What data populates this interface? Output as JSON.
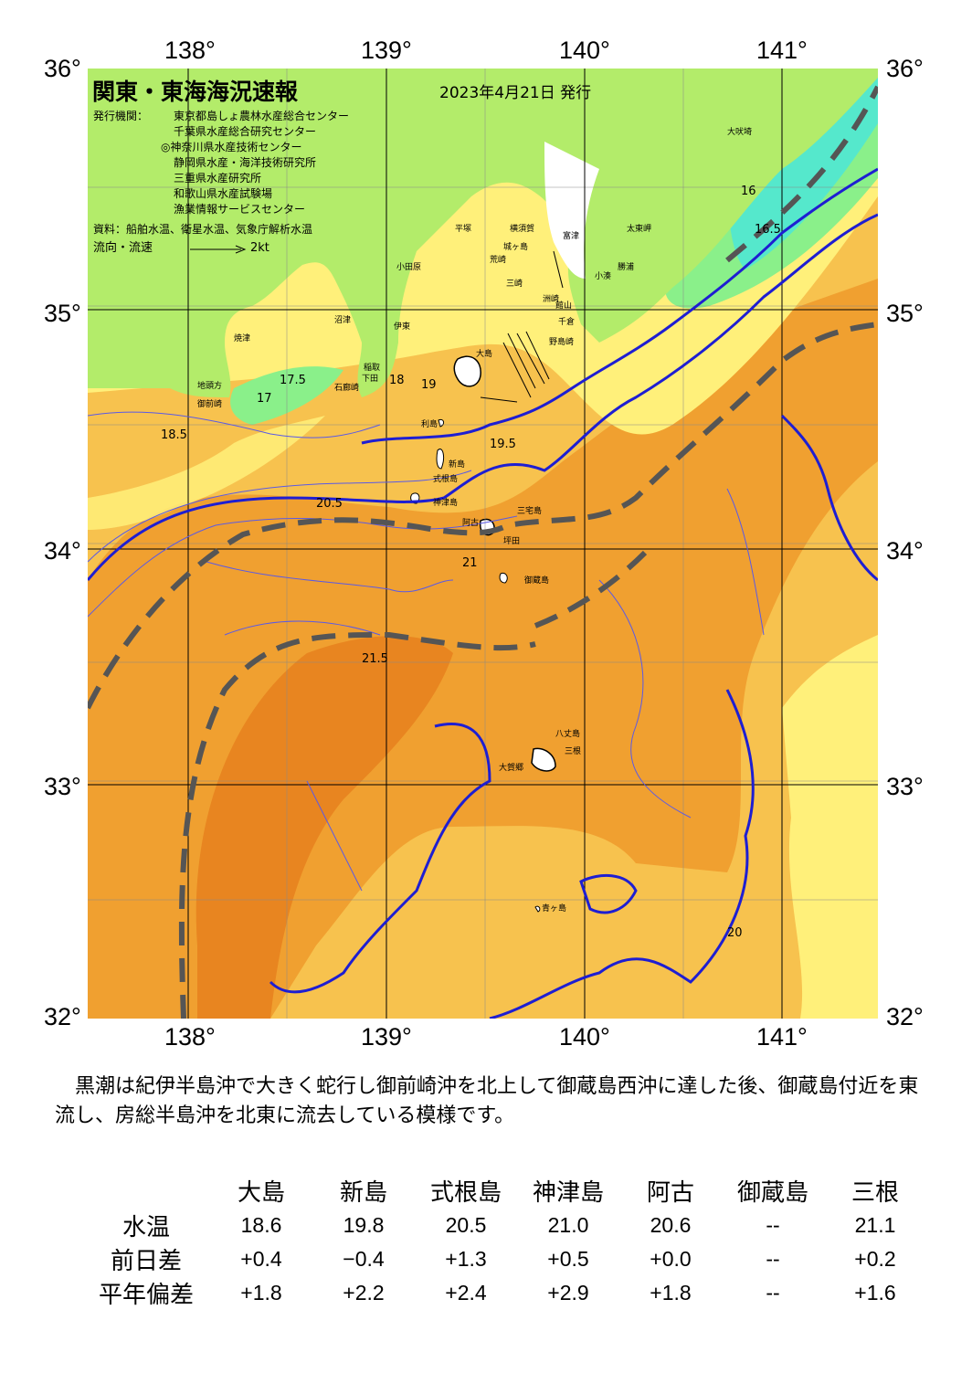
{
  "header": {
    "title": "関東・東海海況速報",
    "date": "2023年4月21日 発行"
  },
  "issuers": {
    "label": "発行機関：",
    "orgs": [
      "東京都島しょ農林水産総合センター",
      "千葉県水産総合研究センター",
      "◎神奈川県水産技術センター",
      "静岡県水産・海洋技術研究所",
      "三重県水産研究所",
      "和歌山県水産試験場",
      "漁業情報サービスセンター"
    ],
    "sources": "資料：船舶水温、衛星水温、気象庁解析水温",
    "flow_label": "流向・流速",
    "flow_scale": "2kt"
  },
  "axes": {
    "lon_labels": [
      "138°",
      "139°",
      "140°",
      "141°"
    ],
    "lat_labels": [
      "36°",
      "35°",
      "34°",
      "33°",
      "32°"
    ],
    "lon_range": [
      137.5,
      141.5
    ],
    "lat_range": [
      32,
      36
    ]
  },
  "places": [
    "大吠埼",
    "太東岬",
    "勝浦",
    "小湊",
    "富津",
    "横須賀",
    "城ヶ島",
    "荒崎",
    "三崎",
    "館山",
    "千倉",
    "野島崎",
    "洲崎",
    "平塚",
    "小田原",
    "伊東",
    "稲取",
    "下田",
    "石廊崎",
    "沼津",
    "焼津",
    "御前崎",
    "地頭方",
    "大島",
    "利島",
    "新島",
    "式根島",
    "神津島",
    "三宅島",
    "阿古",
    "坪田",
    "御蔵島",
    "八丈島",
    "三根",
    "大賀郷",
    "青ヶ島"
  ],
  "isotherm_labels": [
    "16",
    "16.5",
    "17",
    "17.5",
    "18",
    "18.5",
    "19",
    "19.5",
    "20",
    "20.5",
    "21",
    "21.5"
  ],
  "colors": {
    "land": "#b3ec6a",
    "sea_cold": "#55e8cc",
    "sea_cool": "#8af08a",
    "sea_mid": "#fff07a",
    "sea_warm": "#f7c24e",
    "sea_hot": "#f0a030",
    "sea_hottest": "#e88520",
    "isotherm_major": "#1e1ed2",
    "kuroshio_axis": "#555555"
  },
  "note": "　黒潮は紀伊半島沖で大きく蛇行し御前崎沖を北上して御蔵島西沖に達した後、御蔵島付近を東流し、房総半島沖を北東に流去している模様です。",
  "stats": {
    "headers": [
      "大島",
      "新島",
      "式根島",
      "神津島",
      "阿古",
      "御蔵島",
      "三根"
    ],
    "rows": [
      {
        "label": "水温",
        "values": [
          "18.6",
          "19.8",
          "20.5",
          "21.0",
          "20.6",
          "--",
          "21.1"
        ]
      },
      {
        "label": "前日差",
        "values": [
          "+0.4",
          "−0.4",
          "+1.3",
          "+0.5",
          "+0.0",
          "--",
          "+0.2"
        ]
      },
      {
        "label": "平年偏差",
        "values": [
          "+1.8",
          "+2.2",
          "+2.4",
          "+2.9",
          "+1.8",
          "--",
          "+1.6"
        ]
      }
    ]
  }
}
